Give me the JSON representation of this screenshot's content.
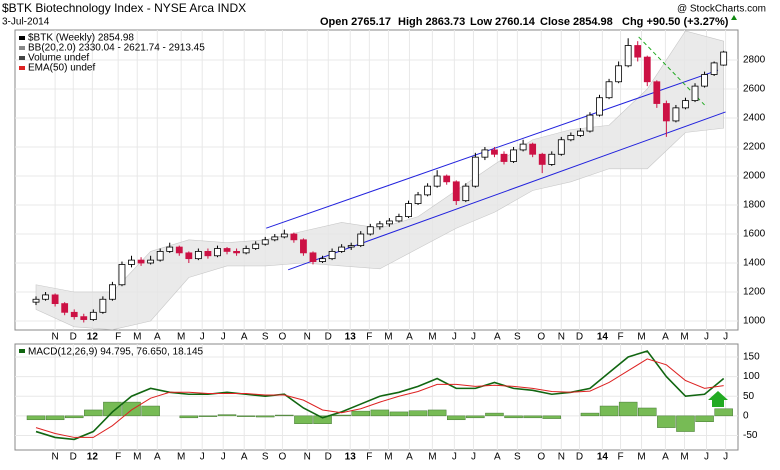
{
  "header": {
    "title": "$BTK Biotechnology Index - NYSE Arca  INDX",
    "date": "3-Jul-2014",
    "open": "Open 2765.17",
    "high": "High 2863.73",
    "low": "Low 2760.14",
    "close": "Close 2854.98",
    "chg": "Chg +90.50 (+3.27%)",
    "source": "@ StockCharts.com"
  },
  "chart_data": [
    {
      "type": "candlestick",
      "legend": [
        "$BTK (Weekly) 2854.98",
        "BB(20,2.0) 2330.04 - 2621.74 - 2913.45",
        "Volume undef",
        "EMA(50) undef"
      ],
      "up_color": "#000000",
      "down_color": "#cc1144",
      "grid": true,
      "ylim": [
        938,
        3007
      ],
      "yticks": [
        1000,
        1200,
        1400,
        1600,
        1800,
        2000,
        2200,
        2400,
        2600,
        2800
      ],
      "xlim": [
        -2.2,
        73.5
      ],
      "xticks": [
        {
          "value": 2.0,
          "label": "N"
        },
        {
          "value": 3.9,
          "label": "D"
        },
        {
          "value": 5.9,
          "label": "12"
        },
        {
          "value": 8.6,
          "label": "F"
        },
        {
          "value": 10.6,
          "label": "M"
        },
        {
          "value": 12.7,
          "label": "A"
        },
        {
          "value": 15.2,
          "label": "M"
        },
        {
          "value": 17.4,
          "label": "J"
        },
        {
          "value": 19.6,
          "label": "J"
        },
        {
          "value": 21.8,
          "label": "A"
        },
        {
          "value": 24.0,
          "label": "S"
        },
        {
          "value": 25.8,
          "label": "O"
        },
        {
          "value": 28.4,
          "label": "N"
        },
        {
          "value": 30.6,
          "label": "D"
        },
        {
          "value": 32.9,
          "label": "13"
        },
        {
          "value": 34.9,
          "label": "F"
        },
        {
          "value": 36.9,
          "label": "M"
        },
        {
          "value": 39.1,
          "label": "A"
        },
        {
          "value": 41.5,
          "label": "M"
        },
        {
          "value": 43.8,
          "label": "J"
        },
        {
          "value": 45.8,
          "label": "J"
        },
        {
          "value": 48.3,
          "label": "A"
        },
        {
          "value": 50.4,
          "label": "S"
        },
        {
          "value": 52.9,
          "label": "O"
        },
        {
          "value": 55.0,
          "label": "N"
        },
        {
          "value": 56.9,
          "label": "D"
        },
        {
          "value": 59.3,
          "label": "14"
        },
        {
          "value": 61.2,
          "label": "F"
        },
        {
          "value": 63.4,
          "label": "M"
        },
        {
          "value": 65.9,
          "label": "A"
        },
        {
          "value": 67.9,
          "label": "M"
        },
        {
          "value": 70.2,
          "label": "J"
        },
        {
          "value": 72.2,
          "label": "J"
        }
      ],
      "ohlc": [
        [
          1130,
          1170,
          1110,
          1150
        ],
        [
          1150,
          1200,
          1140,
          1180
        ],
        [
          1180,
          1190,
          1100,
          1120
        ],
        [
          1120,
          1130,
          1040,
          1060
        ],
        [
          1060,
          1080,
          1010,
          1030
        ],
        [
          1030,
          1050,
          990,
          1010
        ],
        [
          1010,
          1080,
          1000,
          1060
        ],
        [
          1060,
          1170,
          1050,
          1150
        ],
        [
          1150,
          1270,
          1140,
          1250
        ],
        [
          1250,
          1410,
          1240,
          1390
        ],
        [
          1390,
          1450,
          1370,
          1420
        ],
        [
          1420,
          1440,
          1380,
          1400
        ],
        [
          1400,
          1450,
          1390,
          1420
        ],
        [
          1420,
          1500,
          1410,
          1480
        ],
        [
          1480,
          1540,
          1470,
          1510
        ],
        [
          1510,
          1520,
          1450,
          1470
        ],
        [
          1470,
          1480,
          1400,
          1430
        ],
        [
          1430,
          1500,
          1420,
          1480
        ],
        [
          1480,
          1500,
          1430,
          1450
        ],
        [
          1450,
          1520,
          1440,
          1500
        ],
        [
          1500,
          1510,
          1460,
          1480
        ],
        [
          1480,
          1500,
          1450,
          1470
        ],
        [
          1470,
          1520,
          1460,
          1500
        ],
        [
          1500,
          1550,
          1490,
          1530
        ],
        [
          1530,
          1580,
          1520,
          1560
        ],
        [
          1560,
          1600,
          1550,
          1580
        ],
        [
          1580,
          1630,
          1570,
          1600
        ],
        [
          1600,
          1610,
          1540,
          1560
        ],
        [
          1560,
          1570,
          1450,
          1470
        ],
        [
          1470,
          1480,
          1390,
          1410
        ],
        [
          1410,
          1450,
          1400,
          1430
        ],
        [
          1430,
          1500,
          1420,
          1480
        ],
        [
          1480,
          1530,
          1470,
          1510
        ],
        [
          1510,
          1540,
          1490,
          1520
        ],
        [
          1520,
          1620,
          1510,
          1600
        ],
        [
          1600,
          1670,
          1590,
          1650
        ],
        [
          1650,
          1690,
          1630,
          1670
        ],
        [
          1670,
          1710,
          1650,
          1690
        ],
        [
          1690,
          1740,
          1680,
          1720
        ],
        [
          1720,
          1830,
          1710,
          1810
        ],
        [
          1810,
          1890,
          1800,
          1870
        ],
        [
          1870,
          1950,
          1860,
          1930
        ],
        [
          1930,
          2040,
          1920,
          2000
        ],
        [
          2000,
          2010,
          1940,
          1960
        ],
        [
          1960,
          1970,
          1800,
          1830
        ],
        [
          1830,
          1950,
          1820,
          1930
        ],
        [
          1930,
          2160,
          1920,
          2130
        ],
        [
          2130,
          2200,
          2110,
          2180
        ],
        [
          2180,
          2200,
          2130,
          2150
        ],
        [
          2150,
          2170,
          2080,
          2100
        ],
        [
          2100,
          2200,
          2090,
          2180
        ],
        [
          2180,
          2250,
          2170,
          2220
        ],
        [
          2220,
          2230,
          2130,
          2150
        ],
        [
          2150,
          2160,
          2020,
          2080
        ],
        [
          2080,
          2170,
          2070,
          2150
        ],
        [
          2150,
          2270,
          2140,
          2250
        ],
        [
          2250,
          2300,
          2240,
          2280
        ],
        [
          2280,
          2330,
          2270,
          2310
        ],
        [
          2310,
          2440,
          2300,
          2420
        ],
        [
          2420,
          2560,
          2410,
          2540
        ],
        [
          2540,
          2670,
          2530,
          2650
        ],
        [
          2650,
          2790,
          2640,
          2760
        ],
        [
          2760,
          2950,
          2750,
          2900
        ],
        [
          2900,
          2930,
          2790,
          2820
        ],
        [
          2820,
          2830,
          2620,
          2650
        ],
        [
          2650,
          2660,
          2470,
          2500
        ],
        [
          2500,
          2520,
          2270,
          2380
        ],
        [
          2380,
          2490,
          2370,
          2470
        ],
        [
          2470,
          2540,
          2460,
          2520
        ],
        [
          2520,
          2640,
          2510,
          2620
        ],
        [
          2620,
          2720,
          2610,
          2700
        ],
        [
          2700,
          2790,
          2690,
          2780
        ],
        [
          2765.17,
          2863.73,
          2760.14,
          2854.98
        ]
      ],
      "band": {
        "color": "#e6e6e6",
        "x": [
          0,
          4,
          8,
          12,
          16,
          20,
          24,
          28,
          32,
          36,
          40,
          44,
          48,
          52,
          56,
          60,
          64,
          68,
          72
        ],
        "upper": [
          1250,
          1200,
          1200,
          1480,
          1560,
          1540,
          1560,
          1620,
          1680,
          1640,
          1720,
          1900,
          2080,
          2250,
          2320,
          2350,
          2600,
          3000,
          2930
        ],
        "lower": [
          1080,
          960,
          940,
          1000,
          1300,
          1380,
          1380,
          1400,
          1380,
          1360,
          1500,
          1640,
          1750,
          1900,
          1960,
          2050,
          2050,
          2300,
          2330
        ]
      },
      "trendlines": [
        {
          "color": "#2222dd",
          "x": [
            24.1,
            71.4
          ],
          "y": [
            1640,
            2730
          ]
        },
        {
          "color": "#2222dd",
          "x": [
            26.4,
            72.2
          ],
          "y": [
            1353,
            2442
          ]
        },
        {
          "color": "#22aa22",
          "x": [
            63.1,
            70.0
          ],
          "y": [
            2959,
            2490
          ]
        }
      ]
    },
    {
      "type": "macd",
      "legend": "MACD(12,26,9) 94.795, 76.650, 18.145",
      "grid": true,
      "ylim": [
        -87,
        183
      ],
      "yticks": [
        150,
        100,
        50,
        0,
        -50
      ],
      "x": [
        0,
        2,
        4,
        6,
        8,
        10,
        12,
        14,
        16,
        18,
        20,
        22,
        24,
        26,
        28,
        30,
        32,
        34,
        36,
        38,
        40,
        42,
        44,
        46,
        48,
        50,
        52,
        54,
        56,
        58,
        60,
        62,
        64,
        66,
        68,
        70,
        72
      ],
      "series": [
        {
          "name": "MACD",
          "color": "#116611",
          "values": [
            -40,
            -55,
            -60,
            -40,
            10,
            50,
            70,
            60,
            55,
            55,
            60,
            55,
            50,
            55,
            20,
            -5,
            10,
            30,
            50,
            60,
            75,
            95,
            70,
            70,
            85,
            70,
            65,
            55,
            60,
            70,
            110,
            150,
            165,
            100,
            50,
            55,
            95
          ]
        },
        {
          "name": "Signal",
          "color": "#dd2222",
          "values": [
            -30,
            -45,
            -55,
            -55,
            -25,
            15,
            45,
            60,
            60,
            57,
            57,
            57,
            53,
            53,
            40,
            15,
            8,
            18,
            35,
            50,
            62,
            80,
            80,
            75,
            78,
            75,
            70,
            62,
            60,
            63,
            85,
            115,
            145,
            130,
            90,
            70,
            77
          ]
        }
      ],
      "histogram": {
        "color": "#77bb55",
        "values": [
          -10,
          -10,
          -5,
          15,
          35,
          35,
          25,
          0,
          -5,
          -2,
          3,
          -2,
          -3,
          2,
          -20,
          -20,
          2,
          12,
          15,
          10,
          13,
          15,
          -10,
          -5,
          7,
          -5,
          -5,
          -7,
          0,
          7,
          25,
          35,
          20,
          -30,
          -40,
          -15,
          18
        ]
      }
    }
  ]
}
